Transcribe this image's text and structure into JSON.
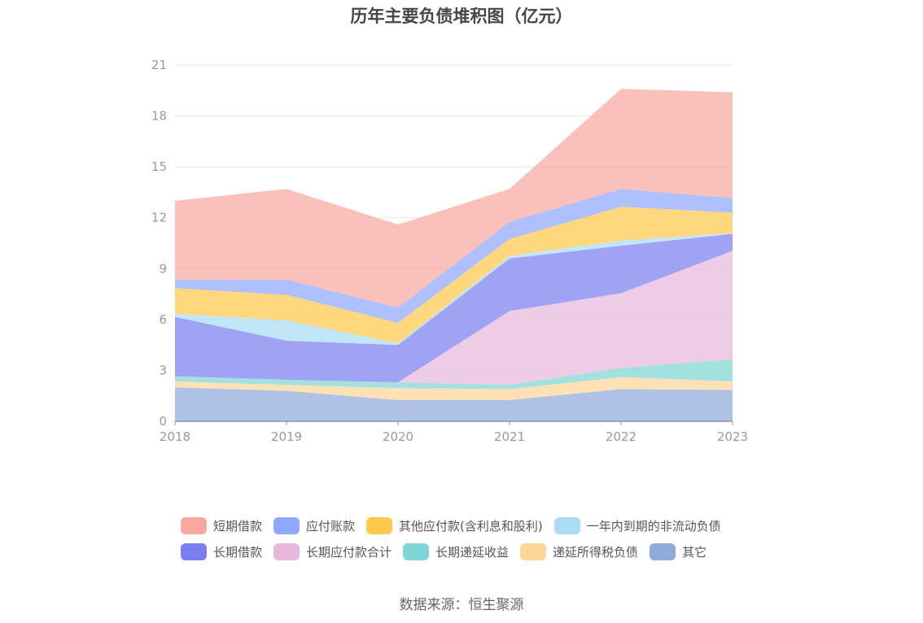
{
  "chart_data": {
    "type": "area",
    "stacked": true,
    "title": "历年主要负债堆积图（亿元）",
    "x": [
      "2018",
      "2019",
      "2020",
      "2021",
      "2022",
      "2023"
    ],
    "ylim": [
      0,
      21
    ],
    "yticks": [
      0,
      3,
      6,
      9,
      12,
      15,
      18,
      21
    ],
    "grid": true,
    "legend_position": "bottom",
    "series": [
      {
        "name": "其它",
        "color": "#8faadc",
        "values": [
          2.0,
          1.8,
          1.25,
          1.25,
          1.9,
          1.85
        ]
      },
      {
        "name": "递延所得税负债",
        "color": "#ffd699",
        "values": [
          0.35,
          0.35,
          0.7,
          0.65,
          0.7,
          0.5
        ]
      },
      {
        "name": "长期递延收益",
        "color": "#7fd6d6",
        "values": [
          0.3,
          0.3,
          0.35,
          0.25,
          0.55,
          1.3
        ]
      },
      {
        "name": "长期应付款合计",
        "color": "#e8b8dc",
        "values": [
          0.0,
          0.0,
          0.0,
          4.35,
          4.4,
          6.4
        ]
      },
      {
        "name": "长期借款",
        "color": "#7b7ef0",
        "values": [
          3.5,
          2.3,
          2.2,
          3.1,
          2.8,
          1.0
        ]
      },
      {
        "name": "一年内到期的非流动负债",
        "color": "#a8ddf5",
        "values": [
          0.2,
          1.2,
          0.1,
          0.15,
          0.3,
          0.05
        ]
      },
      {
        "name": "其他应付款(含利息和股利)",
        "color": "#ffc84a",
        "values": [
          1.5,
          1.5,
          1.2,
          1.0,
          2.0,
          1.2
        ]
      },
      {
        "name": "应付账款",
        "color": "#8fa8ff",
        "values": [
          0.5,
          0.9,
          0.9,
          1.0,
          1.05,
          0.85
        ]
      },
      {
        "name": "短期借款",
        "color": "#f8a79f",
        "values": [
          4.65,
          5.35,
          4.9,
          1.95,
          5.9,
          6.25
        ]
      }
    ]
  },
  "legend": {
    "rows": [
      [
        {
          "label": "短期借款",
          "color": "#f8a79f"
        },
        {
          "label": "应付账款",
          "color": "#8fa8ff"
        },
        {
          "label": "其他应付款(含利息和股利)",
          "color": "#ffc84a"
        },
        {
          "label": "一年内到期的非流动负债",
          "color": "#a8ddf5"
        }
      ],
      [
        {
          "label": "长期借款",
          "color": "#7b7ef0"
        },
        {
          "label": "长期应付款合计",
          "color": "#e8b8dc"
        },
        {
          "label": "长期递延收益",
          "color": "#7fd6d6"
        },
        {
          "label": "递延所得税负债",
          "color": "#ffd699"
        },
        {
          "label": "其它",
          "color": "#8faadc"
        }
      ]
    ]
  },
  "source": "数据来源：恒生聚源"
}
